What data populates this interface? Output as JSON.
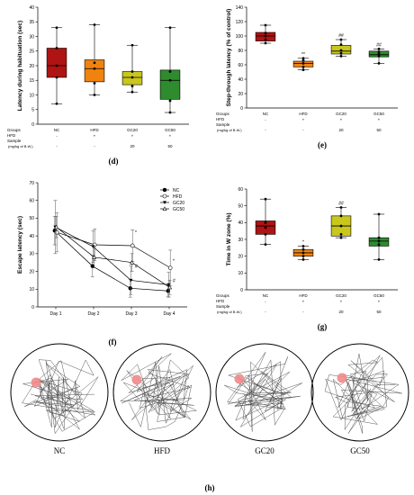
{
  "chart_data": [
    {
      "type": "box",
      "panel": "(d)",
      "ylabel": "Latency during habituation (sec)",
      "ylim": [
        0,
        40
      ],
      "yticks": [
        0,
        5,
        10,
        15,
        20,
        25,
        30,
        35,
        40
      ],
      "categories": [
        "NC",
        "HFD",
        "GC20",
        "GC50"
      ],
      "colors": [
        "#b01313",
        "#f0820f",
        "#c9c61c",
        "#2e8b2e"
      ],
      "boxes": [
        {
          "group": "NC",
          "whisker_low": 7,
          "q1": 16,
          "median": 20,
          "q3": 26,
          "whisker_high": 33,
          "points": [
            7,
            16,
            20,
            26,
            33
          ]
        },
        {
          "group": "HFD",
          "whisker_low": 10,
          "q1": 14.5,
          "median": 19,
          "q3": 22,
          "whisker_high": 34,
          "points": [
            10,
            14,
            19,
            21,
            34
          ]
        },
        {
          "group": "GC20",
          "whisker_low": 11,
          "q1": 13.5,
          "median": 16,
          "q3": 18,
          "whisker_high": 27,
          "points": [
            11,
            13,
            16,
            18,
            27
          ]
        },
        {
          "group": "GC50",
          "whisker_low": 4,
          "q1": 8.5,
          "median": 15,
          "q3": 18.5,
          "whisker_high": 33,
          "points": [
            4,
            8,
            15,
            18,
            33
          ]
        }
      ],
      "table": {
        "row_labels": [
          "Groups",
          "HFD",
          "Sample",
          "(mg/kg of B.W.)"
        ],
        "groups": [
          "NC",
          "HFD",
          "GC20",
          "GC50"
        ],
        "hfd": [
          "-",
          "+",
          "+",
          "+"
        ],
        "sample": [
          "-",
          "-",
          "20",
          "50"
        ]
      }
    },
    {
      "type": "box",
      "panel": "(e)",
      "ylabel": "Step-through latency (% of control)",
      "ylim": [
        0,
        140
      ],
      "yticks": [
        0,
        20,
        40,
        60,
        80,
        100,
        120,
        140
      ],
      "categories": [
        "NC",
        "HFD",
        "GC20",
        "GC50"
      ],
      "colors": [
        "#b01313",
        "#f0820f",
        "#c9c61c",
        "#2e8b2e"
      ],
      "boxes": [
        {
          "group": "NC",
          "whisker_low": 90,
          "q1": 93,
          "median": 100,
          "q3": 105,
          "whisker_high": 115,
          "points": [
            90,
            95,
            100,
            104,
            115
          ]
        },
        {
          "group": "HFD",
          "whisker_low": 53,
          "q1": 57,
          "median": 62,
          "q3": 65,
          "whisker_high": 69,
          "points": [
            53,
            57,
            62,
            66,
            69
          ]
        },
        {
          "group": "GC20",
          "whisker_low": 72,
          "q1": 75,
          "median": 79,
          "q3": 87,
          "whisker_high": 95,
          "points": [
            72,
            76,
            80,
            88,
            95
          ]
        },
        {
          "group": "GC50",
          "whisker_low": 62,
          "q1": 71,
          "median": 74,
          "q3": 79,
          "whisker_high": 82,
          "points": [
            62,
            72,
            75,
            78,
            82
          ]
        }
      ],
      "annotations": [
        {
          "group": "HFD",
          "text": "**"
        },
        {
          "group": "GC20",
          "text": "##"
        },
        {
          "group": "GC50",
          "text": "##"
        }
      ],
      "table": {
        "row_labels": [
          "Groups",
          "HFD",
          "Sample",
          "(mg/kg of B.W.)"
        ],
        "groups": [
          "NC",
          "HFD",
          "GC20",
          "GC50"
        ],
        "hfd": [
          "-",
          "+",
          "+",
          "+"
        ],
        "sample": [
          "-",
          "-",
          "20",
          "50"
        ]
      }
    },
    {
      "type": "line",
      "panel": "(f)",
      "ylabel": "Escape latency (sec)",
      "ylim": [
        0,
        70
      ],
      "yticks": [
        0,
        10,
        20,
        30,
        40,
        50,
        60,
        70
      ],
      "x": [
        "Day 1",
        "Day 2",
        "Day 3",
        "Day 4"
      ],
      "legend_position": "top-right",
      "series": [
        {
          "name": "NC",
          "marker": "circle-filled",
          "values": [
            43,
            23,
            10.5,
            9
          ],
          "errors": [
            8,
            6,
            5,
            3
          ]
        },
        {
          "name": "HFD",
          "marker": "circle-open",
          "values": [
            42,
            35,
            34.5,
            22
          ],
          "errors": [
            11,
            9,
            9,
            10
          ]
        },
        {
          "name": "GC20",
          "marker": "triangle-down",
          "values": [
            45,
            34,
            15,
            12.5
          ],
          "errors": [
            15,
            9,
            8,
            7
          ]
        },
        {
          "name": "GC50",
          "marker": "triangle-up",
          "values": [
            45,
            28,
            25,
            11
          ],
          "errors": [
            6,
            6,
            5,
            4
          ]
        }
      ],
      "annotations": [
        {
          "x": "Day 3",
          "text": "*"
        },
        {
          "x": "Day 3",
          "text": "#"
        },
        {
          "x": "Day 4",
          "text": "*"
        },
        {
          "x": "Day 4",
          "text": "#"
        }
      ]
    },
    {
      "type": "box",
      "panel": "(g)",
      "ylabel": "Time in W zone (%)",
      "ylim": [
        0,
        60
      ],
      "yticks": [
        0,
        10,
        20,
        30,
        40,
        50,
        60
      ],
      "categories": [
        "NC",
        "HFD",
        "GC20",
        "GC50"
      ],
      "colors": [
        "#b01313",
        "#f0820f",
        "#c9c61c",
        "#2e8b2e"
      ],
      "boxes": [
        {
          "group": "NC",
          "whisker_low": 27,
          "q1": 33,
          "median": 38,
          "q3": 41,
          "whisker_high": 54,
          "points": [
            27,
            33,
            37,
            40,
            54
          ]
        },
        {
          "group": "HFD",
          "whisker_low": 18,
          "q1": 20,
          "median": 22,
          "q3": 24,
          "whisker_high": 26,
          "points": [
            18,
            20,
            22,
            24,
            26
          ]
        },
        {
          "group": "GC20",
          "whisker_low": 31,
          "q1": 32,
          "median": 38,
          "q3": 44,
          "whisker_high": 49,
          "points": [
            31,
            33,
            38,
            44,
            49
          ]
        },
        {
          "group": "GC50",
          "whisker_low": 18,
          "q1": 26,
          "median": 29,
          "q3": 31,
          "whisker_high": 45,
          "points": [
            18,
            27,
            29,
            31,
            45
          ]
        }
      ],
      "annotations": [
        {
          "group": "HFD",
          "text": "*"
        },
        {
          "group": "GC20",
          "text": "##"
        }
      ],
      "table": {
        "row_labels": [
          "Groups",
          "HFD",
          "Sample",
          "(mg/kg of B.W.)"
        ],
        "groups": [
          "NC",
          "HFD",
          "GC20",
          "GC50"
        ],
        "hfd": [
          "-",
          "+",
          "+",
          "+"
        ],
        "sample": [
          "-",
          "-",
          "20",
          "50"
        ]
      }
    }
  ],
  "panel_h": {
    "label": "(h)",
    "tracks": [
      "NC",
      "HFD",
      "GC20",
      "GC50"
    ],
    "target_color": "#f08a8a"
  }
}
